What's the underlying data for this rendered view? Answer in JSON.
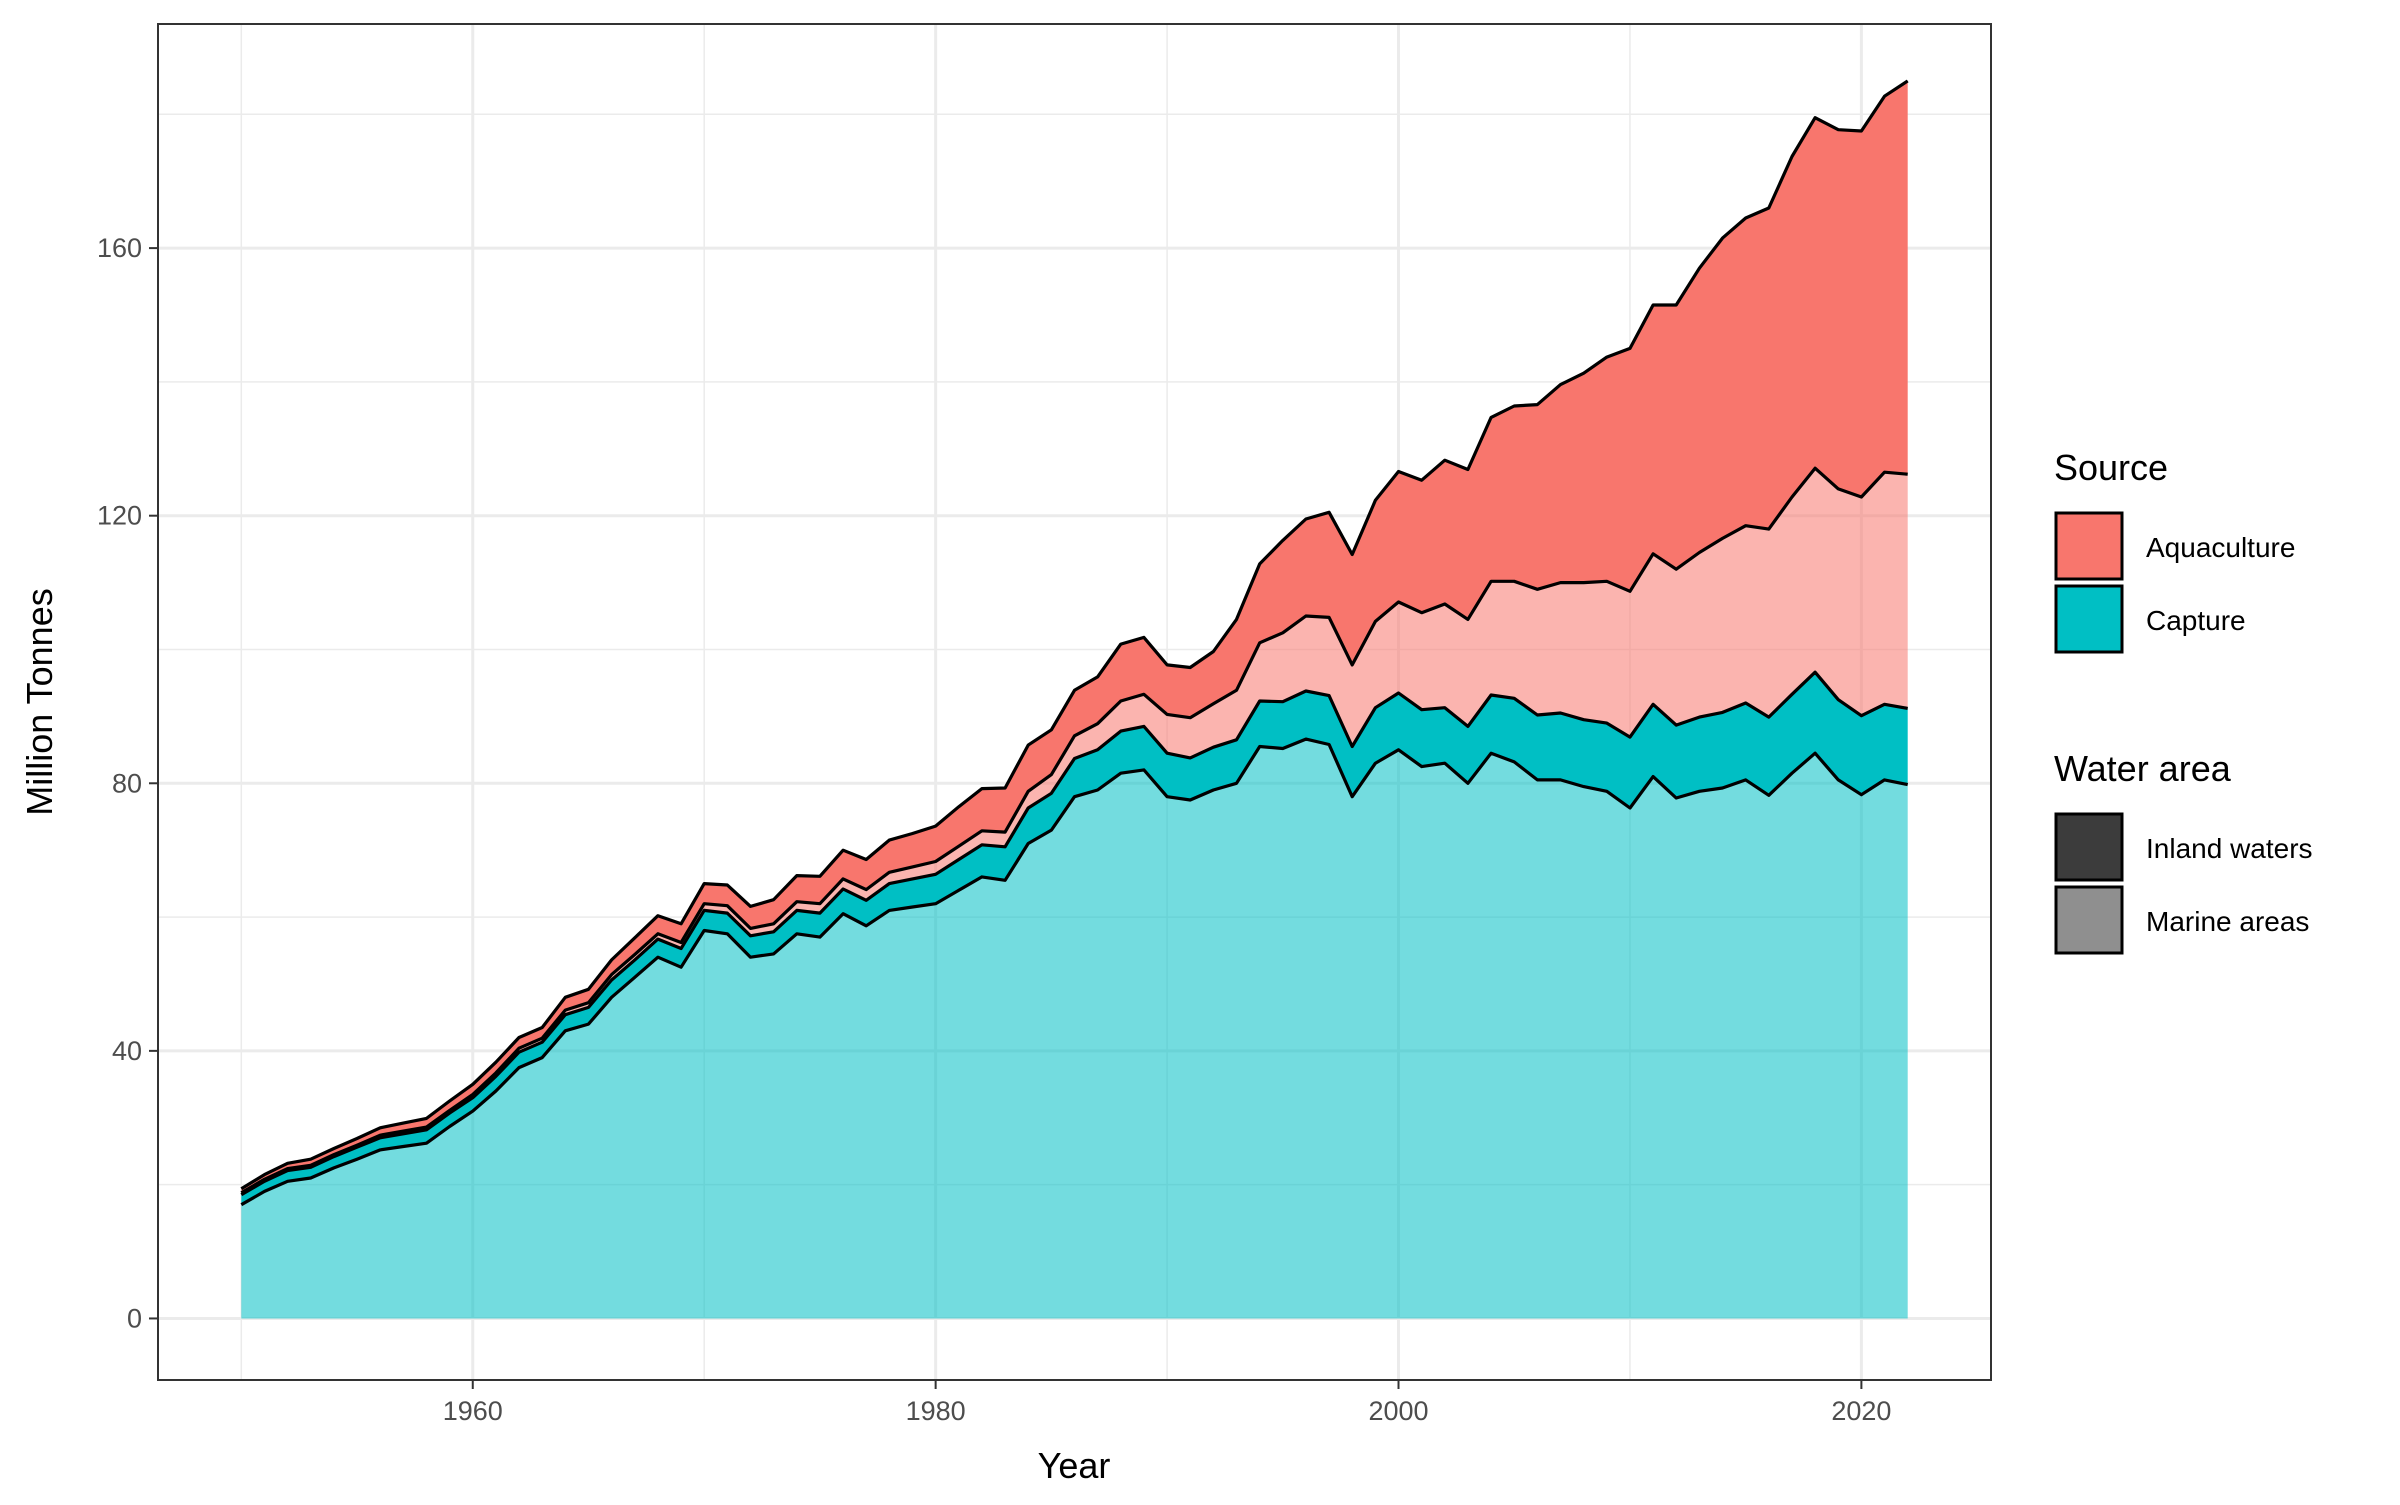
{
  "chart_data": {
    "type": "area",
    "stacked": true,
    "xlabel": "Year",
    "ylabel": "Million Tonnes",
    "xlim": [
      1946.4,
      2025.6
    ],
    "ylim": [
      -9.2,
      193.5
    ],
    "x_ticks": [
      1960,
      1980,
      2000,
      2020
    ],
    "y_ticks": [
      0,
      40,
      80,
      120,
      160
    ],
    "grid": true,
    "legend_position": "right",
    "x": [
      1950,
      1951,
      1952,
      1953,
      1954,
      1955,
      1956,
      1957,
      1958,
      1959,
      1960,
      1961,
      1962,
      1963,
      1964,
      1965,
      1966,
      1967,
      1968,
      1969,
      1970,
      1971,
      1972,
      1973,
      1974,
      1975,
      1976,
      1977,
      1978,
      1979,
      1980,
      1981,
      1982,
      1983,
      1984,
      1985,
      1986,
      1987,
      1988,
      1989,
      1990,
      1991,
      1992,
      1993,
      1994,
      1995,
      1996,
      1997,
      1998,
      1999,
      2000,
      2001,
      2002,
      2003,
      2004,
      2005,
      2006,
      2007,
      2008,
      2009,
      2010,
      2011,
      2012,
      2013,
      2014,
      2015,
      2016,
      2017,
      2018,
      2019,
      2020,
      2021,
      2022
    ],
    "series": [
      {
        "source": "Capture",
        "water": "Marine areas",
        "color": "#00bfc4",
        "opacity": 0.55,
        "values": [
          17,
          19,
          20.5,
          21,
          22.5,
          23.8,
          25.2,
          25.7,
          26.2,
          28.7,
          31,
          34,
          37.5,
          39,
          43,
          44,
          48,
          51,
          54,
          52.5,
          58,
          57.5,
          54,
          54.5,
          57.5,
          57,
          60.5,
          58.7,
          61,
          61.5,
          62,
          64,
          66,
          65.5,
          71,
          73,
          78,
          79,
          81.5,
          82,
          78,
          77.5,
          79,
          80,
          85.5,
          85.2,
          86.6,
          85.8,
          78,
          83,
          85,
          82.5,
          83,
          80,
          84.5,
          83.2,
          80.5,
          80.5,
          79.5,
          78.8,
          76.3,
          81,
          77.8,
          78.8,
          79.3,
          80.5,
          78.2,
          81.5,
          84.5,
          80.5,
          78.3,
          80.5,
          79.8
        ]
      },
      {
        "source": "Capture",
        "water": "Inland waters",
        "color": "#00bfc4",
        "opacity": 1,
        "values": [
          1.5,
          1.5,
          1.6,
          1.6,
          1.7,
          1.8,
          1.8,
          1.9,
          2,
          2,
          2,
          2.2,
          2.3,
          2.3,
          2.4,
          2.5,
          2.6,
          2.6,
          2.7,
          2.8,
          3,
          3.1,
          3.2,
          3.3,
          3.5,
          3.6,
          3.7,
          3.8,
          4,
          4.2,
          4.4,
          4.6,
          4.8,
          5,
          5.3,
          5.5,
          5.7,
          6,
          6.3,
          6.5,
          6.5,
          6.3,
          6.4,
          6.5,
          6.8,
          7,
          7.2,
          7.3,
          7.5,
          8.3,
          8.5,
          8.5,
          8.3,
          8.5,
          8.7,
          9.5,
          9.7,
          10,
          10,
          10.2,
          10.6,
          10.8,
          10.9,
          11.1,
          11.3,
          11.5,
          11.7,
          11.8,
          12.1,
          12,
          11.8,
          11.3,
          11.4
        ]
      },
      {
        "source": "Aquaculture",
        "water": "Marine areas",
        "color": "#f8766d",
        "opacity": 0.55,
        "values": [
          0.3,
          0.3,
          0.3,
          0.3,
          0.3,
          0.3,
          0.4,
          0.4,
          0.4,
          0.4,
          0.5,
          0.5,
          0.6,
          0.6,
          0.7,
          0.7,
          0.8,
          0.8,
          0.8,
          0.9,
          1,
          1.1,
          1.1,
          1.2,
          1.3,
          1.4,
          1.5,
          1.6,
          1.7,
          1.8,
          1.9,
          2,
          2.1,
          2.2,
          2.5,
          2.8,
          3.4,
          3.9,
          4.5,
          4.8,
          5.8,
          6,
          6.5,
          7.4,
          8.7,
          10.3,
          11.2,
          11.7,
          12.2,
          12.9,
          13.6,
          14.5,
          15.5,
          16,
          17,
          17.5,
          18.8,
          19.5,
          20.5,
          21.2,
          21.8,
          22.5,
          23.3,
          24.6,
          26,
          26.5,
          28.1,
          29.5,
          30.5,
          31.5,
          32.7,
          34.7,
          35
        ]
      },
      {
        "source": "Aquaculture",
        "water": "Inland waters",
        "color": "#f8766d",
        "opacity": 1,
        "values": [
          0.6,
          0.7,
          0.8,
          0.9,
          0.9,
          1,
          1.1,
          1.2,
          1.3,
          1.4,
          1.5,
          1.6,
          1.6,
          1.6,
          1.9,
          2,
          2.2,
          2.5,
          2.7,
          2.8,
          3,
          3.1,
          3.3,
          3.6,
          3.9,
          4.1,
          4.3,
          4.5,
          4.8,
          5,
          5.3,
          5.9,
          6.3,
          6.6,
          6.9,
          6.7,
          6.8,
          7,
          8.5,
          8.5,
          7.4,
          7.5,
          7.8,
          10.6,
          11.8,
          13.8,
          14.5,
          15.7,
          16.5,
          18.1,
          19.5,
          19.8,
          21.5,
          22.4,
          24.5,
          26.2,
          27.6,
          29.6,
          31.3,
          33.5,
          36.3,
          37.2,
          39.5,
          42.5,
          44.9,
          46,
          48,
          50.9,
          52.4,
          53.7,
          54.7,
          56.2,
          58.8
        ]
      }
    ]
  },
  "legend": {
    "source_title": "Source",
    "source_items": [
      {
        "label": "Aquaculture",
        "color": "#f8766d"
      },
      {
        "label": "Capture",
        "color": "#00bfc4"
      }
    ],
    "water_title": "Water area",
    "water_items": [
      {
        "label": "Inland waters",
        "color": "#3c3c3c"
      },
      {
        "label": "Marine areas",
        "color": "#8f8f8f"
      }
    ]
  }
}
